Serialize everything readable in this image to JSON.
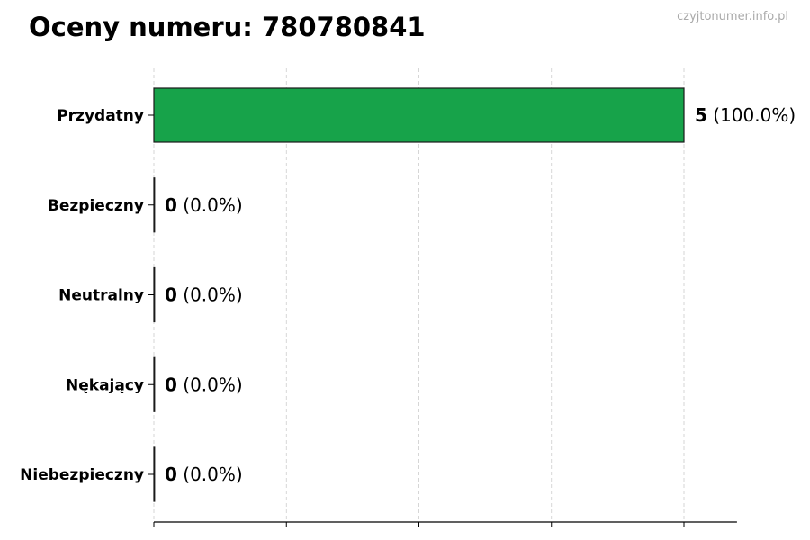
{
  "watermark": "czyjtonumer.info.pl",
  "chart_data": {
    "type": "bar",
    "orientation": "horizontal",
    "title": "Oceny numeru: 780780841",
    "categories": [
      "Przydatny",
      "Bezpieczny",
      "Neutralny",
      "Nękający",
      "Niebezpieczny"
    ],
    "values": [
      5,
      0,
      0,
      0,
      0
    ],
    "value_labels": [
      "5",
      "0",
      "0",
      "0",
      "0"
    ],
    "percent_labels": [
      "(100.0%)",
      "(0.0%)",
      "(0.0%)",
      "(0.0%)",
      "(0.0%)"
    ],
    "xlim": [
      0,
      5.5
    ],
    "xticks": [
      0,
      1.25,
      2.5,
      3.75,
      5
    ],
    "xtick_labels_visible": false,
    "grid": "vertical dashed",
    "bar_color": "#17a34a",
    "bar_edge_color": "#1a1a1a"
  }
}
